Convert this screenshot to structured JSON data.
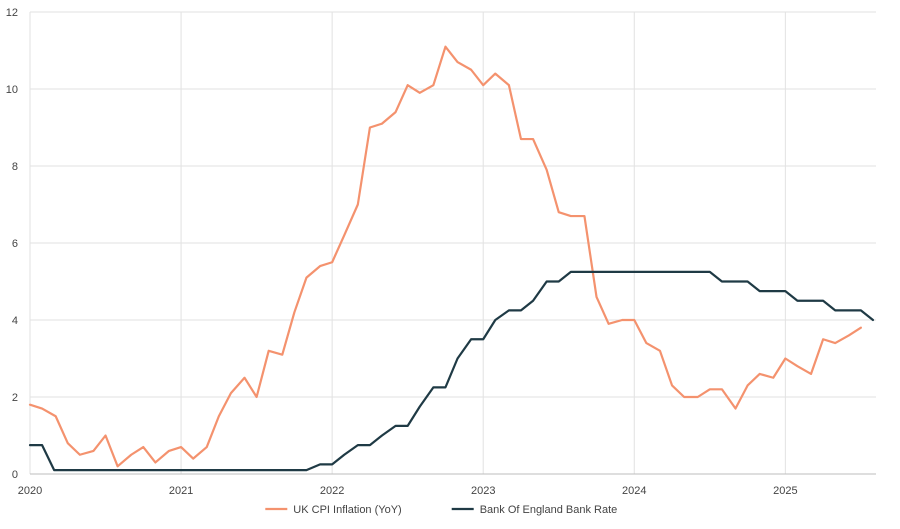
{
  "chart_data": {
    "type": "line",
    "title": "",
    "xlabel": "",
    "ylabel": "",
    "xlim": [
      2020.0,
      2025.6
    ],
    "ylim": [
      0,
      12
    ],
    "y_ticks": [
      0,
      2,
      4,
      6,
      8,
      10,
      12
    ],
    "x_ticks": [
      {
        "value": 2020,
        "label": "2020"
      },
      {
        "value": 2021,
        "label": "2021"
      },
      {
        "value": 2022,
        "label": "2022"
      },
      {
        "value": 2023,
        "label": "2023"
      },
      {
        "value": 2024,
        "label": "2024"
      },
      {
        "value": 2025,
        "label": "2025"
      }
    ],
    "grid": "vertical and horizontal",
    "legend_position": "bottom-center",
    "series": [
      {
        "name": "UK CPI Inflation (YoY)",
        "color": "#F4926E",
        "step": false,
        "points": [
          [
            2020.0,
            1.8
          ],
          [
            2020.08,
            1.7
          ],
          [
            2020.17,
            1.5
          ],
          [
            2020.25,
            0.8
          ],
          [
            2020.33,
            0.5
          ],
          [
            2020.42,
            0.6
          ],
          [
            2020.5,
            1.0
          ],
          [
            2020.58,
            0.2
          ],
          [
            2020.67,
            0.5
          ],
          [
            2020.75,
            0.7
          ],
          [
            2020.83,
            0.3
          ],
          [
            2020.92,
            0.6
          ],
          [
            2021.0,
            0.7
          ],
          [
            2021.08,
            0.4
          ],
          [
            2021.17,
            0.7
          ],
          [
            2021.25,
            1.5
          ],
          [
            2021.33,
            2.1
          ],
          [
            2021.42,
            2.5
          ],
          [
            2021.5,
            2.0
          ],
          [
            2021.58,
            3.2
          ],
          [
            2021.67,
            3.1
          ],
          [
            2021.75,
            4.2
          ],
          [
            2021.83,
            5.1
          ],
          [
            2021.92,
            5.4
          ],
          [
            2022.0,
            5.5
          ],
          [
            2022.08,
            6.2
          ],
          [
            2022.17,
            7.0
          ],
          [
            2022.25,
            9.0
          ],
          [
            2022.33,
            9.1
          ],
          [
            2022.42,
            9.4
          ],
          [
            2022.5,
            10.1
          ],
          [
            2022.58,
            9.9
          ],
          [
            2022.67,
            10.1
          ],
          [
            2022.75,
            11.1
          ],
          [
            2022.83,
            10.7
          ],
          [
            2022.92,
            10.5
          ],
          [
            2023.0,
            10.1
          ],
          [
            2023.08,
            10.4
          ],
          [
            2023.17,
            10.1
          ],
          [
            2023.25,
            8.7
          ],
          [
            2023.33,
            8.7
          ],
          [
            2023.42,
            7.9
          ],
          [
            2023.5,
            6.8
          ],
          [
            2023.58,
            6.7
          ],
          [
            2023.67,
            6.7
          ],
          [
            2023.75,
            4.6
          ],
          [
            2023.83,
            3.9
          ],
          [
            2023.92,
            4.0
          ],
          [
            2024.0,
            4.0
          ],
          [
            2024.08,
            3.4
          ],
          [
            2024.17,
            3.2
          ],
          [
            2024.25,
            2.3
          ],
          [
            2024.33,
            2.0
          ],
          [
            2024.42,
            2.0
          ],
          [
            2024.5,
            2.2
          ],
          [
            2024.58,
            2.2
          ],
          [
            2024.67,
            1.7
          ],
          [
            2024.75,
            2.3
          ],
          [
            2024.83,
            2.6
          ],
          [
            2024.92,
            2.5
          ],
          [
            2025.0,
            3.0
          ],
          [
            2025.08,
            2.8
          ],
          [
            2025.17,
            2.6
          ],
          [
            2025.25,
            3.5
          ],
          [
            2025.33,
            3.4
          ],
          [
            2025.42,
            3.6
          ],
          [
            2025.5,
            3.8
          ]
        ]
      },
      {
        "name": "Bank Of England Bank Rate",
        "color": "#1F3A45",
        "step": false,
        "points": [
          [
            2020.0,
            0.75
          ],
          [
            2020.08,
            0.75
          ],
          [
            2020.16,
            0.1
          ],
          [
            2021.83,
            0.1
          ],
          [
            2021.92,
            0.25
          ],
          [
            2022.0,
            0.25
          ],
          [
            2022.08,
            0.5
          ],
          [
            2022.17,
            0.75
          ],
          [
            2022.25,
            0.75
          ],
          [
            2022.33,
            1.0
          ],
          [
            2022.42,
            1.25
          ],
          [
            2022.5,
            1.25
          ],
          [
            2022.58,
            1.75
          ],
          [
            2022.67,
            2.25
          ],
          [
            2022.75,
            2.25
          ],
          [
            2022.83,
            3.0
          ],
          [
            2022.92,
            3.5
          ],
          [
            2023.0,
            3.5
          ],
          [
            2023.08,
            4.0
          ],
          [
            2023.17,
            4.25
          ],
          [
            2023.25,
            4.25
          ],
          [
            2023.33,
            4.5
          ],
          [
            2023.42,
            5.0
          ],
          [
            2023.5,
            5.0
          ],
          [
            2023.58,
            5.25
          ],
          [
            2023.67,
            5.25
          ],
          [
            2023.75,
            5.25
          ],
          [
            2023.83,
            5.25
          ],
          [
            2023.92,
            5.25
          ],
          [
            2024.0,
            5.25
          ],
          [
            2024.08,
            5.25
          ],
          [
            2024.17,
            5.25
          ],
          [
            2024.25,
            5.25
          ],
          [
            2024.33,
            5.25
          ],
          [
            2024.42,
            5.25
          ],
          [
            2024.5,
            5.25
          ],
          [
            2024.58,
            5.0
          ],
          [
            2024.67,
            5.0
          ],
          [
            2024.75,
            5.0
          ],
          [
            2024.83,
            4.75
          ],
          [
            2024.92,
            4.75
          ],
          [
            2025.0,
            4.75
          ],
          [
            2025.08,
            4.5
          ],
          [
            2025.17,
            4.5
          ],
          [
            2025.25,
            4.5
          ],
          [
            2025.33,
            4.25
          ],
          [
            2025.42,
            4.25
          ],
          [
            2025.5,
            4.25
          ],
          [
            2025.58,
            4.0
          ]
        ]
      }
    ]
  }
}
